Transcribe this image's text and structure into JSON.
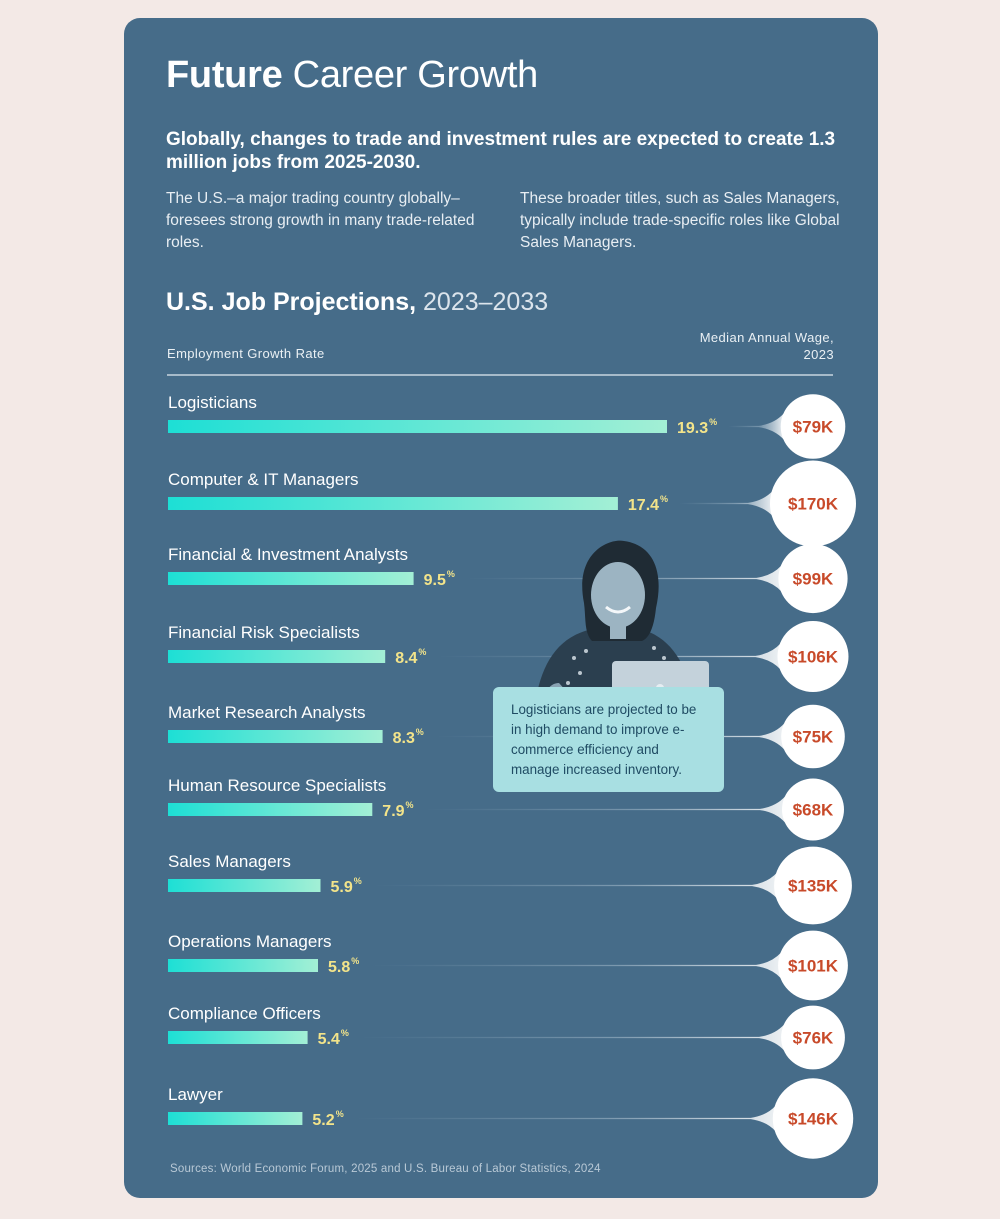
{
  "title": {
    "bold": "Future",
    "rest": " Career Growth"
  },
  "headline": "Globally, changes to trade and investment rules are expected to create 1.3 million jobs from 2025-2030.",
  "intro_left": "The U.S.–a major trading country globally–foresees strong growth in many trade-related roles.",
  "intro_right": "These broader titles, such as Sales Managers, typically include trade-specific roles like Global Sales Managers.",
  "chart_header": {
    "bold": "U.S. Job Projections,",
    "thin": " 2023–2033"
  },
  "axis_left_label": "Employment Growth Rate",
  "axis_right_label": "Median Annual Wage, 2023",
  "callout": "Logisticians are projected to be in high demand to improve e-commerce efficiency and manage increased inventory.",
  "source": "Sources: World Economic Forum, 2025 and U.S. Bureau of Labor Statistics, 2024",
  "colors": {
    "card": "#466c89",
    "bar_start": "#1ddfd5",
    "bar_end": "#a3efd5",
    "value": "#f3e48a",
    "wage": "#c84a2a"
  },
  "chart_data": {
    "type": "bar",
    "orientation": "horizontal",
    "title": "U.S. Job Projections, 2023–2033",
    "xlabel": "Employment Growth Rate",
    "value_unit": "%",
    "xlim": [
      0,
      19.3
    ],
    "categories": [
      "Logisticians",
      "Computer & IT Managers",
      "Financial & Investment Analysts",
      "Financial Risk Specialists",
      "Market Research Analysts",
      "Human Resource Specialists",
      "Sales Managers",
      "Operations Managers",
      "Compliance Officers",
      "Lawyer"
    ],
    "values": [
      19.3,
      17.4,
      9.5,
      8.4,
      8.3,
      7.9,
      5.9,
      5.8,
      5.4,
      5.2
    ],
    "value_labels": [
      "19.3",
      "17.4",
      "9.5",
      "8.4",
      "8.3",
      "7.9",
      "5.9",
      "5.8",
      "5.4",
      "5.2"
    ],
    "wage_label": "Median Annual Wage, 2023",
    "wages": [
      "$79K",
      "$170K",
      "$99K",
      "$106K",
      "$75K",
      "$68K",
      "$135K",
      "$101K",
      "$76K",
      "$146K"
    ],
    "wage_values_k": [
      79,
      170,
      99,
      106,
      75,
      68,
      135,
      101,
      76,
      146
    ]
  }
}
